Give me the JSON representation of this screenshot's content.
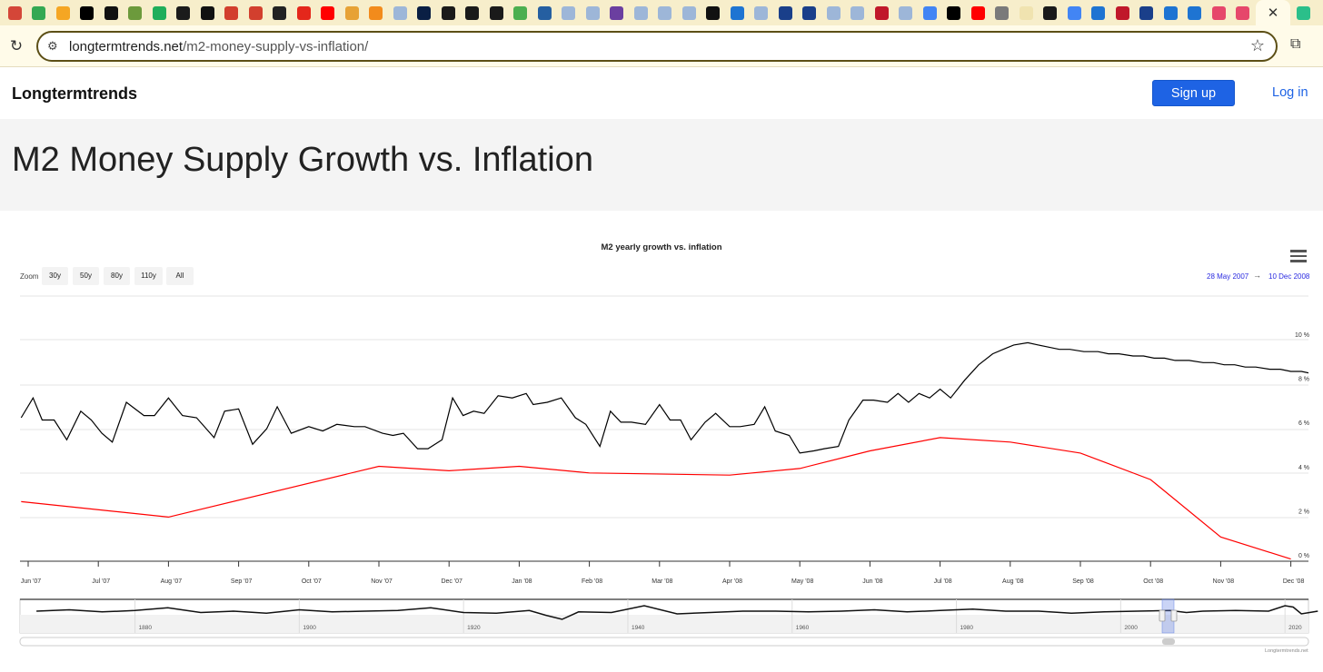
{
  "browser": {
    "url_domain": "longtermtrends.net",
    "url_path": "/m2-money-supply-vs-inflation/",
    "tab_close": "✕",
    "new_tab": "+",
    "favicon_colors": [
      "#d44638",
      "#34a853",
      "#f5a623",
      "#000000",
      "#111111",
      "#6c9a3c",
      "#1fae5b",
      "#1b1b1b",
      "#111111",
      "#d23f2e",
      "#d23f2e",
      "#222222",
      "#e4271b",
      "#ff0000",
      "#e7a235",
      "#f28b1c",
      "#9db6d8",
      "#0a1f44",
      "#1a1a1a",
      "#1a1a1a",
      "#1a1a1a",
      "#4caf50",
      "#255fa1",
      "#9db6d8",
      "#9db6d8",
      "#6b3fa0",
      "#9db6d8",
      "#9db6d8",
      "#9db6d8",
      "#111111",
      "#1e74d2",
      "#9db6d8",
      "#1a3f8a",
      "#1a3f8a",
      "#9db6d8",
      "#9db6d8",
      "#c0182a",
      "#9db6d8",
      "#4285f4",
      "#000000",
      "#ff0000",
      "#7a7a7a",
      "#f0e3b0",
      "#1a1a1a",
      "#4285f4",
      "#1e74d2",
      "#c0182a",
      "#1a3f8a",
      "#1e74d2",
      "#1e74d2",
      "#e6476b",
      "#e6476b",
      "#2bbf8a"
    ]
  },
  "site": {
    "brand": "Longtermtrends",
    "signup": "Sign up",
    "login": "Log in",
    "title": "M2 Money Supply Growth vs. Inflation"
  },
  "chart_data": {
    "type": "line",
    "title": "M2 yearly growth vs. inflation",
    "zoom_label": "Zoom",
    "zoom_buttons": [
      "30y",
      "50y",
      "80y",
      "110y",
      "All"
    ],
    "range_from": "28 May 2007",
    "range_arrow": "→",
    "range_to": "10 Dec 2008",
    "credit": "Longtermtrends.net",
    "y_ticks": [
      "0 %",
      "2 %",
      "4 %",
      "6 %",
      "8 %",
      "10 %"
    ],
    "ylim": [
      0,
      10
    ],
    "x_ticks": [
      "Jun '07",
      "Jul '07",
      "Aug '07",
      "Sep '07",
      "Oct '07",
      "Nov '07",
      "Dec '07",
      "Jan '08",
      "Feb '08",
      "Mar '08",
      "Apr '08",
      "May '08",
      "Jun '08",
      "Jul '08",
      "Aug '08",
      "Sep '08",
      "Oct '08",
      "Nov '08",
      "Dec '08"
    ],
    "navigator_ticks": [
      "1880",
      "1900",
      "1920",
      "1940",
      "1960",
      "1980",
      "2000",
      "2020"
    ],
    "grid": true,
    "series": [
      {
        "color": "#000000",
        "x_months": [
          -0.1,
          0.07,
          0.2,
          0.37,
          0.55,
          0.75,
          0.9,
          1.05,
          1.2,
          1.4,
          1.65,
          1.8,
          2.0,
          2.2,
          2.4,
          2.65,
          2.8,
          3.0,
          3.2,
          3.4,
          3.55,
          3.75,
          4.0,
          4.2,
          4.4,
          4.65,
          4.8,
          5.05,
          5.2,
          5.35,
          5.55,
          5.7,
          5.9,
          6.05,
          6.2,
          6.35,
          6.5,
          6.7,
          6.9,
          7.1,
          7.2,
          7.4,
          7.6,
          7.8,
          7.95,
          8.15,
          8.3,
          8.45,
          8.6,
          8.8,
          9.0,
          9.15,
          9.3,
          9.45,
          9.65,
          9.8,
          10.0,
          10.15,
          10.35,
          10.5,
          10.65,
          10.85,
          11.0,
          11.2,
          11.35,
          11.55,
          11.7,
          11.9,
          12.05,
          12.25,
          12.4,
          12.55,
          12.7,
          12.85,
          13.0,
          13.15,
          13.35,
          13.55,
          13.75,
          13.9,
          14.05,
          14.25,
          14.4,
          14.55,
          14.7,
          14.85,
          15.05,
          15.25,
          15.4,
          15.55,
          15.75,
          15.9,
          16.05,
          16.2,
          16.35,
          16.55,
          16.75,
          16.9,
          17.05,
          17.2,
          17.35,
          17.5,
          17.7,
          17.85,
          18.0,
          18.15,
          18.3,
          18.45,
          18.6
        ],
        "values": [
          6.5,
          7.4,
          6.4,
          6.4,
          5.5,
          6.8,
          6.4,
          5.8,
          5.4,
          7.2,
          6.6,
          6.6,
          7.4,
          6.6,
          6.5,
          5.6,
          6.8,
          6.9,
          5.3,
          6.0,
          7.0,
          5.8,
          6.1,
          5.9,
          6.2,
          6.1,
          6.1,
          5.8,
          5.7,
          5.8,
          5.1,
          5.1,
          5.5,
          7.4,
          6.6,
          6.8,
          6.7,
          7.5,
          7.4,
          7.6,
          7.1,
          7.2,
          7.4,
          6.5,
          6.2,
          5.2,
          6.8,
          6.3,
          6.3,
          6.2,
          7.1,
          6.4,
          6.4,
          5.5,
          6.3,
          6.7,
          6.1,
          6.1,
          6.2,
          7.0,
          5.9,
          5.7,
          4.9,
          5.0,
          5.1,
          5.2,
          6.4,
          7.3,
          7.3,
          7.2,
          7.6,
          7.2,
          7.6,
          7.4,
          7.8,
          7.4,
          8.2,
          8.9,
          9.4,
          9.6,
          9.8,
          9.9,
          9.8,
          9.7,
          9.6,
          9.6,
          9.5,
          9.5,
          9.4,
          9.4,
          9.3,
          9.3,
          9.2,
          9.2,
          9.1,
          9.1,
          9.0,
          9.0,
          8.9,
          8.9,
          8.8,
          8.8,
          8.7,
          8.7,
          8.6,
          8.6,
          8.5,
          8.5,
          8.4
        ]
      },
      {
        "color": "#ff0000",
        "x_months": [
          -0.1,
          2.0,
          5.0,
          6.0,
          7.0,
          8.0,
          10.0,
          11.0,
          12.0,
          13.0,
          14.0,
          15.0,
          16.0,
          17.0,
          18.0
        ],
        "values": [
          2.7,
          2.0,
          4.3,
          4.1,
          4.3,
          4.0,
          3.9,
          4.2,
          5.0,
          5.6,
          5.4,
          4.9,
          3.7,
          1.1,
          0.1
        ]
      }
    ],
    "navigator": {
      "years": [
        1868,
        1872,
        1876,
        1880,
        1884,
        1888,
        1892,
        1896,
        1900,
        1904,
        1908,
        1912,
        1916,
        1920,
        1924,
        1928,
        1930,
        1932,
        1934,
        1938,
        1942,
        1946,
        1950,
        1954,
        1958,
        1962,
        1966,
        1970,
        1974,
        1978,
        1982,
        1986,
        1990,
        1994,
        1998,
        2002,
        2006,
        2008,
        2010,
        2014,
        2018,
        2020,
        2021,
        2022,
        2024
      ],
      "values": [
        6.8,
        7.0,
        6.7,
        6.9,
        7.3,
        6.6,
        6.8,
        6.5,
        7.0,
        6.7,
        6.8,
        6.9,
        7.3,
        6.6,
        6.5,
        6.9,
        6.2,
        5.6,
        6.7,
        6.6,
        7.6,
        6.4,
        6.6,
        6.8,
        6.8,
        6.7,
        6.8,
        7.0,
        6.7,
        6.9,
        7.1,
        6.8,
        6.8,
        6.5,
        6.7,
        6.8,
        6.9,
        6.6,
        6.8,
        6.9,
        6.8,
        7.6,
        7.4,
        6.4,
        6.8
      ]
    }
  }
}
